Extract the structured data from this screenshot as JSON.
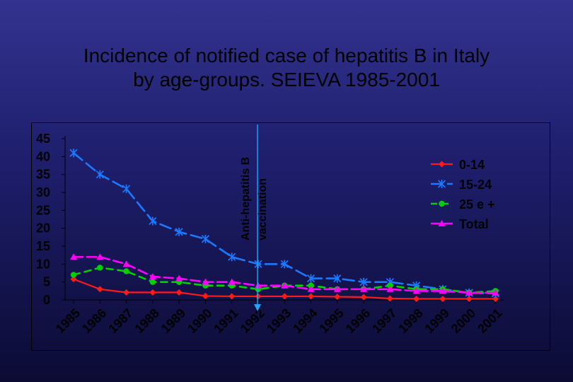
{
  "title": {
    "line1": "Incidence of notified case of hepatitis B in Italy",
    "line2": "by age-groups. SEIEVA 1985-2001"
  },
  "colors": {
    "background_top": "#33338f",
    "background_bottom": "#0b0b34",
    "text": "#000000",
    "series_0_14": "#ff1a1a",
    "series_15_24": "#1b78ff",
    "series_25plus": "#00d000",
    "series_total": "#ff00ff",
    "axis": "#000000",
    "annotation_arrow": "#1da6ff"
  },
  "chart_data": {
    "type": "line",
    "title": "Incidence of notified case of hepatitis B in Italy by age-groups. SEIEVA 1985-2001",
    "xlabel": "",
    "ylabel": "",
    "categories": [
      "1985",
      "1986",
      "1987",
      "1988",
      "1989",
      "1990",
      "1991",
      "1992",
      "1993",
      "1994",
      "1995",
      "1996",
      "1997",
      "1998",
      "1999",
      "2000",
      "2001"
    ],
    "ylim": [
      0,
      45
    ],
    "yticks": [
      "0",
      "5",
      "10",
      "15",
      "20",
      "25",
      "30",
      "35",
      "40",
      "45"
    ],
    "grid": false,
    "legend_position": "right",
    "legend": [
      "0-14",
      "15-24",
      "25 e +",
      "Total"
    ],
    "annotation": {
      "label_line1": "Anti-hepatitis B",
      "label_line2": "vaccination",
      "x_position": "between 1992 and 1993"
    },
    "series": [
      {
        "name": "0-14",
        "marker": "diamond",
        "values": [
          5.8,
          3.0,
          2.1,
          2.1,
          2.1,
          1.1,
          1.0,
          1.0,
          1.0,
          1.0,
          0.9,
          0.8,
          0.4,
          0.3,
          0.3,
          0.3,
          0.3
        ]
      },
      {
        "name": "15-24",
        "marker": "x",
        "values": [
          41.0,
          35.0,
          31.0,
          22.0,
          19.0,
          17.0,
          12.0,
          10.0,
          10.0,
          6.0,
          6.0,
          5.0,
          5.0,
          4.0,
          3.0,
          2.0,
          1.8
        ]
      },
      {
        "name": "25 e +",
        "marker": "circle",
        "values": [
          7.0,
          9.0,
          8.0,
          5.0,
          5.0,
          4.0,
          4.0,
          3.0,
          4.0,
          4.0,
          3.0,
          3.0,
          4.0,
          3.0,
          3.0,
          2.0,
          2.5
        ]
      },
      {
        "name": "Total",
        "marker": "triangle",
        "values": [
          12.0,
          12.0,
          10.0,
          6.5,
          6.0,
          5.0,
          5.0,
          4.0,
          4.0,
          3.0,
          3.0,
          3.0,
          3.0,
          2.5,
          2.5,
          2.0,
          2.0
        ]
      }
    ]
  }
}
